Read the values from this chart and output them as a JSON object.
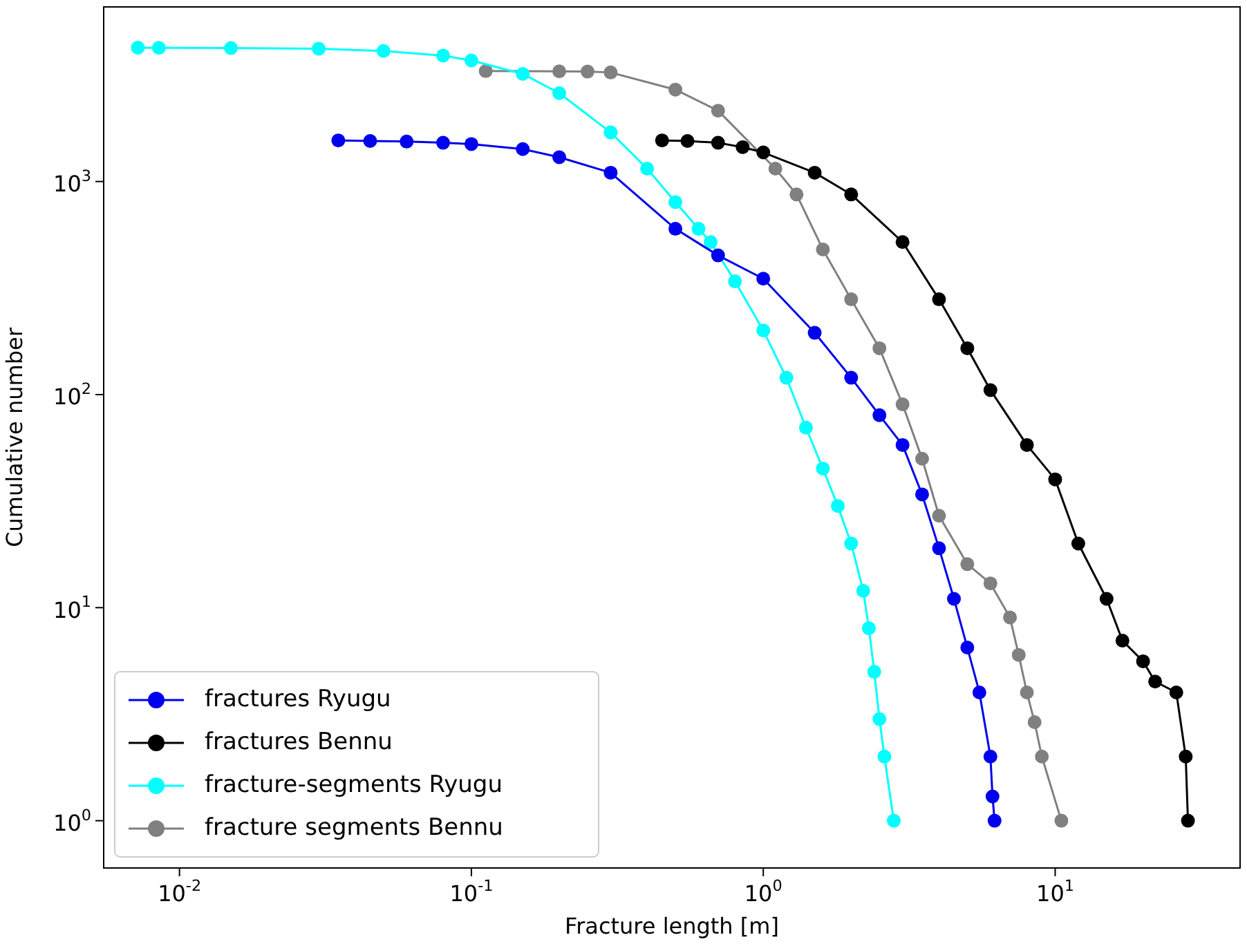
{
  "chart_data": {
    "type": "line",
    "xlabel": "Fracture length [m]",
    "ylabel": "Cumulative number",
    "log": "xy",
    "grid": false,
    "legend": "bottom left",
    "marker": "circle",
    "line_style": "solid",
    "xlim": [
      0.0055,
      43
    ],
    "ylim": [
      0.62,
      6600
    ],
    "xticks": [
      {
        "value": 0.01,
        "label": "10$^{-2}$"
      },
      {
        "value": 0.1,
        "label": "10$^{-1}$"
      },
      {
        "value": 1,
        "label": "10$^{0}$"
      },
      {
        "value": 10,
        "label": "10$^{1}$"
      }
    ],
    "yticks": [
      {
        "value": 1,
        "label": "10$^{0}$"
      },
      {
        "value": 10,
        "label": "10$^{1}$"
      },
      {
        "value": 100,
        "label": "10$^{2}$"
      },
      {
        "value": 1000,
        "label": "10$^{3}$"
      }
    ],
    "series": [
      {
        "name": "fractures Ryugu",
        "color": "#0000ee",
        "x": [
          0.035,
          0.045,
          0.06,
          0.08,
          0.1,
          0.15,
          0.2,
          0.3,
          0.5,
          0.7,
          1,
          1.5,
          2,
          2.5,
          3,
          3.5,
          4,
          4.5,
          5,
          5.5,
          6,
          6.1,
          6.2
        ],
        "values": [
          1560,
          1550,
          1540,
          1520,
          1500,
          1420,
          1300,
          1100,
          600,
          450,
          350,
          195,
          120,
          80,
          58,
          34,
          19,
          11,
          6.5,
          4,
          2,
          1.3,
          1
        ]
      },
      {
        "name": "fractures Bennu",
        "color": "#000000",
        "x": [
          0.45,
          0.55,
          0.7,
          0.85,
          1,
          1.5,
          2,
          3,
          4,
          5,
          6,
          8,
          10,
          12,
          15,
          17,
          20,
          22,
          26,
          28,
          28.5
        ],
        "values": [
          1560,
          1550,
          1520,
          1450,
          1370,
          1100,
          870,
          520,
          280,
          165,
          105,
          58,
          40,
          20,
          11,
          7,
          5.6,
          4.5,
          4,
          2,
          1
        ]
      },
      {
        "name": "fracture-segments Ryugu",
        "color": "#00ffff",
        "x": [
          0.0072,
          0.0085,
          0.015,
          0.03,
          0.05,
          0.08,
          0.1,
          0.15,
          0.2,
          0.3,
          0.4,
          0.5,
          0.6,
          0.66,
          0.8,
          1,
          1.2,
          1.4,
          1.6,
          1.8,
          2,
          2.2,
          2.3,
          2.4,
          2.5,
          2.6,
          2.8
        ],
        "values": [
          4250,
          4240,
          4230,
          4200,
          4100,
          3900,
          3700,
          3200,
          2600,
          1700,
          1150,
          800,
          600,
          520,
          340,
          200,
          120,
          70,
          45,
          30,
          20,
          12,
          8,
          5,
          3,
          2,
          1
        ]
      },
      {
        "name": "fracture segments Bennu",
        "color": "#808080",
        "x": [
          0.112,
          0.2,
          0.25,
          0.3,
          0.5,
          0.7,
          1.1,
          1.3,
          1.6,
          2,
          2.5,
          3,
          3.5,
          4,
          5,
          6,
          7,
          7.5,
          8,
          8.5,
          9,
          10.5
        ],
        "values": [
          3300,
          3290,
          3280,
          3250,
          2700,
          2150,
          1150,
          870,
          480,
          280,
          165,
          90,
          50,
          27,
          16,
          13,
          9,
          6,
          4,
          2.9,
          2,
          1
        ]
      }
    ]
  }
}
